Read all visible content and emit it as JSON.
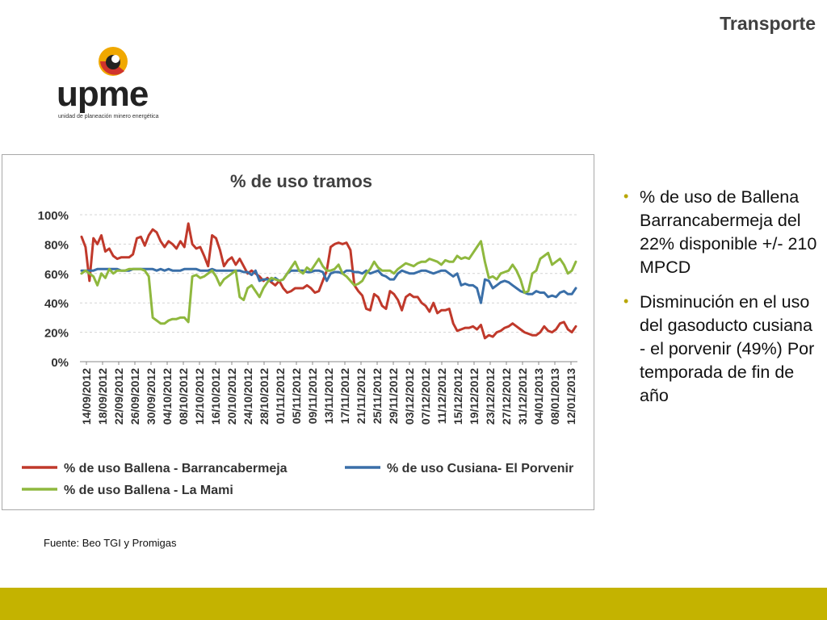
{
  "header": {
    "title": "Transporte"
  },
  "logo": {
    "word": "upme",
    "subtitle": "unidad de planeación minero energética",
    "colors": {
      "orange": "#f0a800",
      "red": "#d0342c",
      "dark": "#222222"
    }
  },
  "bullets": [
    "% de uso de Ballena Barrancabermeja del 22% disponible +/- 210 MPCD",
    "Disminución en el uso del gasoducto cusiana - el porvenir (49%) Por temporada de fin de año"
  ],
  "source": "Fuente: Beo TGI y Promigas",
  "theme": {
    "bar": "#c4b300",
    "bullet": "#b8a600"
  },
  "chart_data": {
    "type": "line",
    "title": "% de uso tramos",
    "xlabel": "",
    "ylabel": "",
    "ylim": [
      0,
      100
    ],
    "yticks": [
      0,
      20,
      40,
      60,
      80,
      100
    ],
    "ytick_labels": [
      "0%",
      "20%",
      "40%",
      "60%",
      "80%",
      "100%"
    ],
    "grid": true,
    "legend_position": "bottom",
    "x_tick_labels": [
      "14/09/2012",
      "18/09/2012",
      "22/09/2012",
      "26/09/2012",
      "30/09/2012",
      "04/10/2012",
      "08/10/2012",
      "12/10/2012",
      "16/10/2012",
      "20/10/2012",
      "24/10/2012",
      "28/10/2012",
      "01/11/2012",
      "05/11/2012",
      "09/11/2012",
      "13/11/2012",
      "17/11/2012",
      "21/11/2012",
      "25/11/2012",
      "29/11/2012",
      "03/12/2012",
      "07/12/2012",
      "11/12/2012",
      "15/12/2012",
      "19/12/2012",
      "23/12/2012",
      "27/12/2012",
      "31/12/2012",
      "04/01/2013",
      "08/01/2013",
      "12/01/2013"
    ],
    "series": [
      {
        "name": "% de uso Ballena - Barrancabermeja",
        "color": "#c0392b",
        "values": [
          85,
          78,
          55,
          84,
          80,
          86,
          75,
          77,
          72,
          70,
          71,
          71,
          71,
          73,
          84,
          85,
          79,
          86,
          90,
          88,
          82,
          78,
          82,
          80,
          77,
          82,
          78,
          94,
          80,
          77,
          78,
          72,
          65,
          86,
          84,
          76,
          65,
          69,
          71,
          66,
          70,
          65,
          60,
          62,
          60,
          58,
          55,
          57,
          54,
          52,
          55,
          50,
          47,
          48,
          50,
          50,
          50,
          52,
          50,
          47,
          48,
          55,
          62,
          78,
          80,
          81,
          80,
          81,
          76,
          52,
          48,
          45,
          36,
          35,
          46,
          44,
          38,
          36,
          48,
          46,
          42,
          35,
          44,
          46,
          44,
          44,
          40,
          38,
          34,
          40,
          33,
          35,
          35,
          36,
          26,
          21,
          22,
          23,
          23,
          24,
          22,
          25,
          16,
          18,
          17,
          20,
          21,
          23,
          24,
          26,
          24,
          22,
          20,
          19,
          18,
          18,
          20,
          24,
          21,
          20,
          22,
          26,
          27,
          22,
          20,
          24
        ]
      },
      {
        "name": "% de uso Cusiana- El Porvenir",
        "color": "#3a6fa8",
        "values": [
          62,
          62,
          62,
          62,
          63,
          63,
          63,
          63,
          63,
          63,
          62,
          62,
          62,
          63,
          63,
          63,
          63,
          63,
          63,
          62,
          63,
          62,
          63,
          62,
          62,
          62,
          63,
          63,
          63,
          63,
          62,
          62,
          62,
          63,
          62,
          62,
          62,
          62,
          62,
          62,
          62,
          61,
          61,
          59,
          62,
          55,
          56,
          56,
          55,
          57,
          55,
          56,
          60,
          62,
          62,
          62,
          62,
          61,
          61,
          62,
          62,
          61,
          55,
          60,
          61,
          61,
          60,
          62,
          62,
          61,
          61,
          60,
          62,
          60,
          61,
          62,
          59,
          58,
          56,
          56,
          60,
          62,
          61,
          60,
          60,
          61,
          62,
          62,
          61,
          60,
          61,
          62,
          62,
          60,
          58,
          60,
          52,
          53,
          52,
          52,
          50,
          40,
          56,
          55,
          50,
          52,
          54,
          55,
          54,
          52,
          50,
          48,
          47,
          46,
          46,
          48,
          47,
          47,
          44,
          45,
          44,
          47,
          48,
          46,
          46,
          50
        ]
      },
      {
        "name": "% de uso Ballena - La Mami",
        "color": "#8fb83e",
        "values": [
          60,
          62,
          60,
          58,
          52,
          60,
          57,
          63,
          60,
          62,
          62,
          62,
          63,
          63,
          63,
          63,
          62,
          58,
          30,
          28,
          26,
          26,
          28,
          29,
          29,
          30,
          30,
          27,
          58,
          59,
          57,
          58,
          60,
          62,
          58,
          52,
          56,
          58,
          60,
          62,
          44,
          42,
          50,
          52,
          48,
          44,
          50,
          54,
          57,
          56,
          55,
          56,
          60,
          64,
          68,
          62,
          60,
          64,
          62,
          66,
          70,
          65,
          62,
          62,
          63,
          66,
          60,
          58,
          55,
          52,
          53,
          55,
          60,
          63,
          68,
          64,
          62,
          62,
          62,
          60,
          63,
          65,
          67,
          66,
          65,
          67,
          68,
          68,
          70,
          69,
          68,
          66,
          69,
          68,
          68,
          72,
          70,
          71,
          70,
          74,
          78,
          82,
          68,
          57,
          58,
          56,
          60,
          61,
          62,
          66,
          62,
          56,
          47,
          48,
          60,
          62,
          70,
          72,
          74,
          66,
          68,
          70,
          66,
          60,
          62,
          68
        ]
      }
    ]
  }
}
